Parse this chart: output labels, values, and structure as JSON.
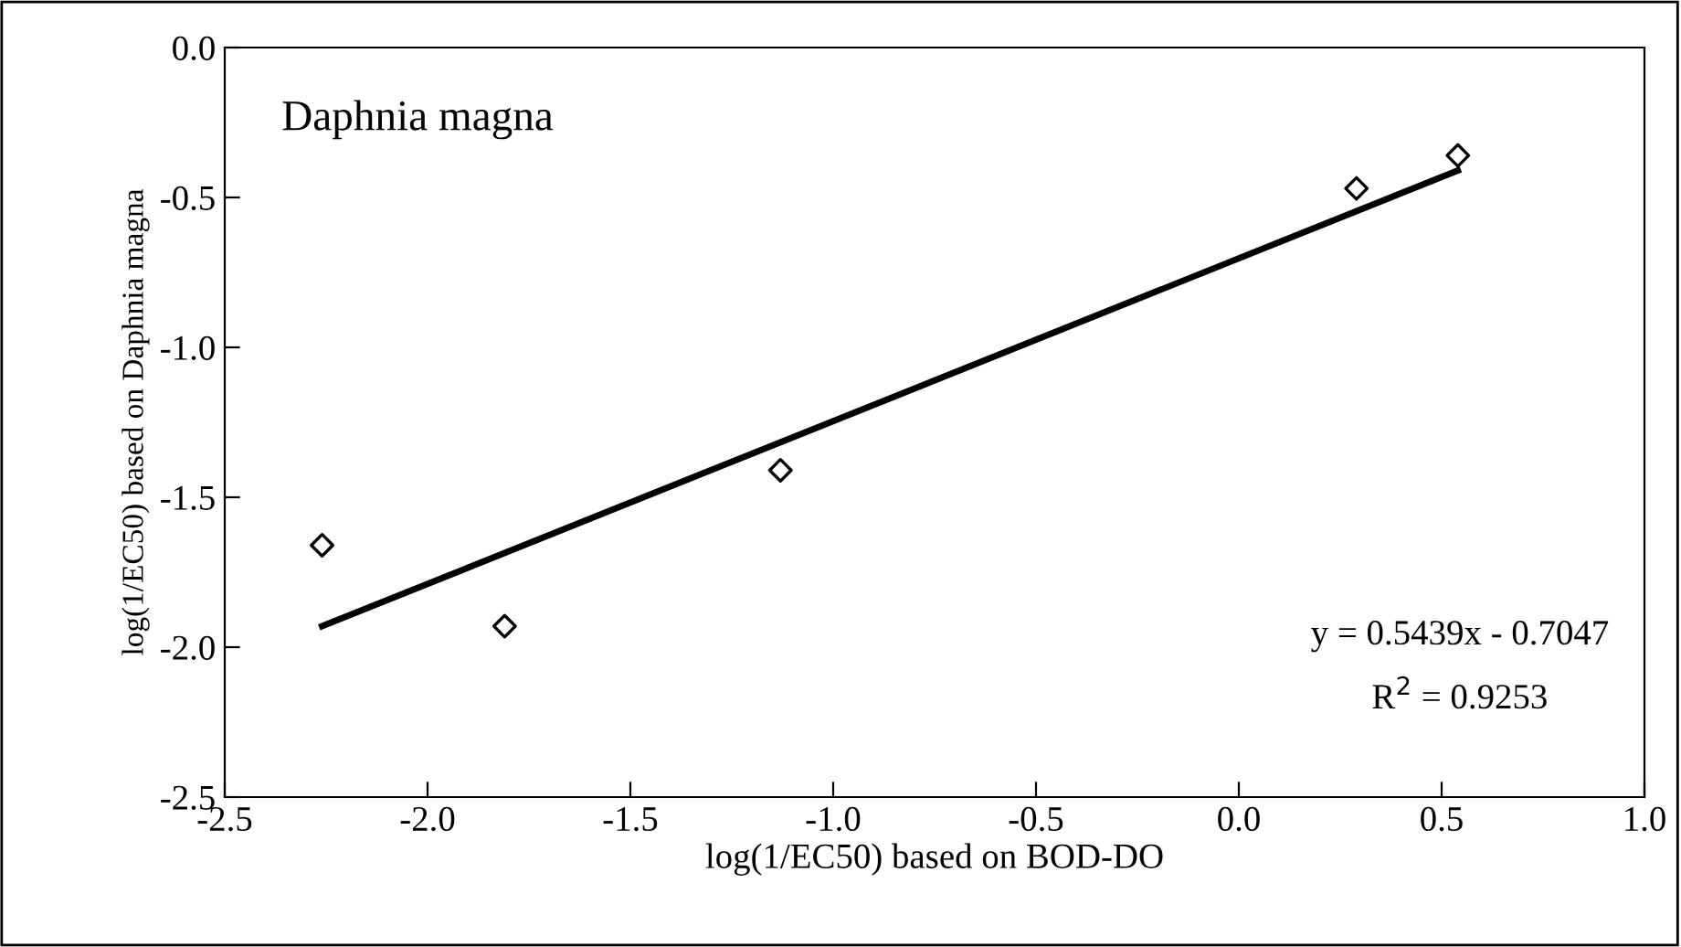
{
  "chart_data": {
    "type": "scatter",
    "title": "Daphnia magna",
    "xlabel": "log(1/EC50) based on BOD-DO",
    "ylabel": "log(1/EC50) based on Daphnia magna",
    "x": [
      -2.26,
      -1.81,
      -1.13,
      0.29,
      0.54
    ],
    "series": [
      {
        "color": "#000000",
        "marker": "diamond",
        "values": [
          -1.66,
          -1.93,
          -1.41,
          -0.47,
          -0.36
        ]
      },
      {
        "type": "line",
        "color": "#000000",
        "marker": "none",
        "line_style": "solid",
        "x": [
          -2.26,
          0.54
        ],
        "values": [
          -1.93,
          -0.41
        ]
      }
    ],
    "annotations": [
      "y = 0.5439x - 0.7047",
      "R$^{2}$ = 0.9253"
    ],
    "xlim": [
      -2.5,
      1.0
    ],
    "xticks": [
      {
        "value": -2.5,
        "label": "-2.5"
      },
      {
        "value": -2.0,
        "label": "-2.0"
      },
      {
        "value": -1.5,
        "label": "-1.5"
      },
      {
        "value": -1.0,
        "label": "-1.0"
      },
      {
        "value": -0.5,
        "label": "-0.5"
      },
      {
        "value": 0.0,
        "label": "0.0"
      },
      {
        "value": 0.5,
        "label": "0.5"
      },
      {
        "value": 1.0,
        "label": "1.0"
      }
    ],
    "ylim": [
      -2.5,
      0.0
    ],
    "yticks": [
      {
        "value": -2.5,
        "label": "-2.5"
      },
      {
        "value": -2.0,
        "label": "-2.0"
      },
      {
        "value": -1.5,
        "label": "-1.5"
      },
      {
        "value": -1.0,
        "label": "-1.0"
      },
      {
        "value": -0.5,
        "label": "-0.5"
      },
      {
        "value": 0.0,
        "label": "0.0"
      }
    ],
    "grid": false,
    "legend": false
  }
}
